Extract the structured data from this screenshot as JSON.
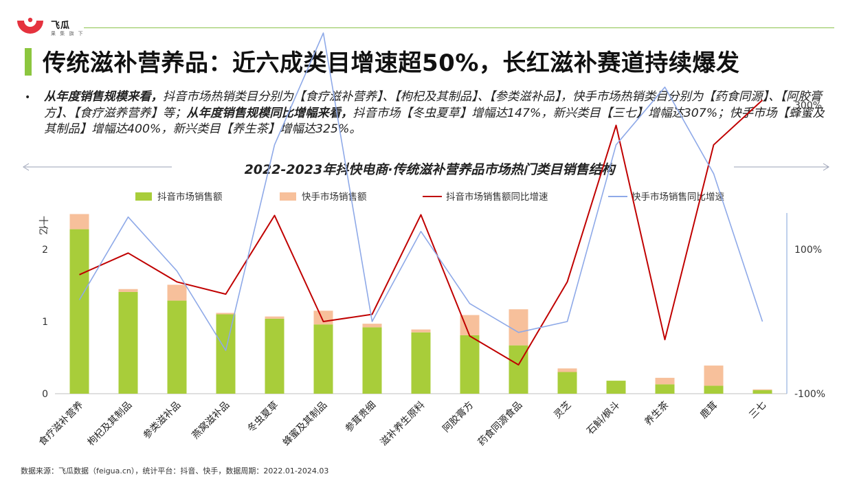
{
  "brand": {
    "name": "飞瓜",
    "tagline": "果 集 旗 下",
    "colors": {
      "accent_green": "#8cc63f",
      "logo_red": "#e5323e"
    }
  },
  "page": {
    "title": "传统滋补营养品：近六成类目增速超50%，长红滋补赛道持续爆发",
    "summary": {
      "p1_bold": "从年度销售规模来看，",
      "p1_text": "抖音市场热销类目分别为【食疗滋补营养】、【枸杞及其制品】、【参类滋补品】，快手市场热销类目分别为【药食同源】、【阿胶膏方】、【食疗滋养营养】等；",
      "p2_bold": "从年度销售规模同比增幅来看，",
      "p2_text": "抖音市场【冬虫夏草】增幅达147%，新兴类目【三七】增幅达307%；快手市场【蜂蜜及其制品】增幅达400%，新兴类目【养生茶】增幅达325%。"
    },
    "source_note": "数据来源：飞瓜数据（feigua.cn），统计平台：抖音、快手，数据周期：2022.01-2024.03"
  },
  "chart_data": {
    "type": "bar",
    "title": "2022-2023年抖快电商·传统滋补营养品市场热门类目销售结构",
    "ylabel": "十亿",
    "ylim": [
      0,
      2.5
    ],
    "y_ticks": [
      "0",
      "1",
      "2"
    ],
    "y2lim": [
      -100,
      400
    ],
    "y2_ticks": [
      "-100%",
      "100%",
      "300%"
    ],
    "legend_position": "top",
    "categories": [
      "食疗滋补营养",
      "枸杞及其制品",
      "参类滋补品",
      "燕窝滋补品",
      "冬虫夏草",
      "蜂蜜及其制品",
      "参茸贵细",
      "滋补养生原料",
      "阿胶膏方",
      "药食同源食品",
      "灵芝",
      "石斛/枫斗",
      "养生茶",
      "鹿茸",
      "三七"
    ],
    "series": [
      {
        "name": "抖音市场销售额",
        "kind": "bar",
        "axis": "left",
        "color": "#a8cd3a",
        "values": [
          2.28,
          1.41,
          1.29,
          1.1,
          1.04,
          0.96,
          0.92,
          0.85,
          0.81,
          0.67,
          0.3,
          0.18,
          0.13,
          0.11,
          0.05
        ]
      },
      {
        "name": "快手市场销售额",
        "kind": "bar-stacked",
        "axis": "left",
        "color": "#f7c09b",
        "values": [
          0.21,
          0.04,
          0.22,
          0.02,
          0.03,
          0.19,
          0.05,
          0.04,
          0.28,
          0.5,
          0.05,
          0.0,
          0.09,
          0.28,
          0.01
        ]
      },
      {
        "name": "抖音市场销售额同比增速",
        "kind": "line",
        "axis": "right",
        "color": "#c00000",
        "values": [
          65,
          95,
          55,
          38,
          147,
          0,
          10,
          148,
          -20,
          -60,
          55,
          272,
          -25,
          245,
          307
        ]
      },
      {
        "name": "快手市场销售同比增速",
        "kind": "line",
        "axis": "right",
        "color": "#8ea9e8",
        "values": [
          30,
          145,
          70,
          -40,
          245,
          400,
          0,
          125,
          25,
          -15,
          0,
          245,
          325,
          205,
          0
        ]
      }
    ]
  }
}
